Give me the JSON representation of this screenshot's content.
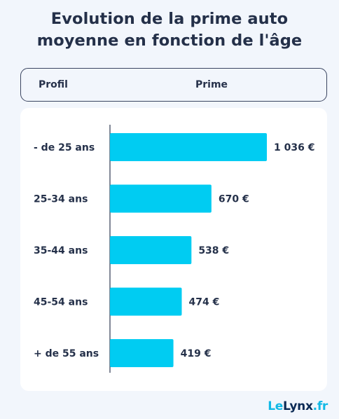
{
  "title_line1": "Evolution de la prime auto",
  "title_line2": "moyenne en fonction de l'âge",
  "header": {
    "col_profile": "Profil",
    "col_premium": "Prime"
  },
  "logo": {
    "part1": "Le",
    "part2": "Lynx",
    "part3": ".fr"
  },
  "colors": {
    "bar": "#00ccf2",
    "text": "#25314a",
    "axis": "#2f3a52"
  },
  "chart_data": {
    "type": "bar",
    "orientation": "horizontal",
    "categories": [
      "- de 25 ans",
      "25-34 ans",
      "35-44 ans",
      "45-54 ans",
      "+ de 55 ans"
    ],
    "values": [
      1036,
      670,
      538,
      474,
      419
    ],
    "value_labels": [
      "1 036 €",
      "670 €",
      "538 €",
      "474 €",
      "419 €"
    ],
    "xlim": [
      0,
      1036
    ],
    "grid": false,
    "legend": "none"
  }
}
